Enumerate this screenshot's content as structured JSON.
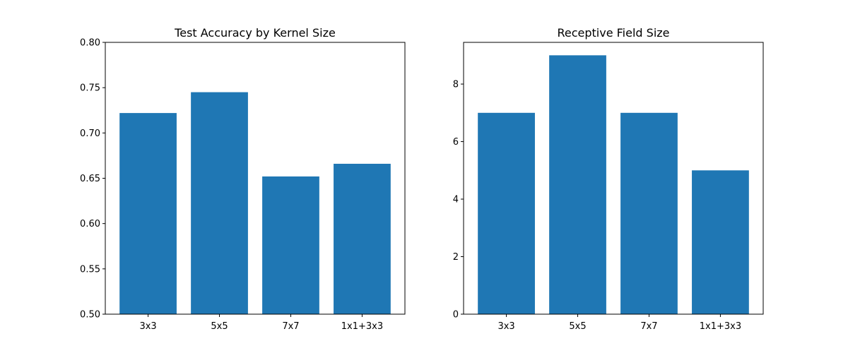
{
  "chart_data": [
    {
      "type": "bar",
      "title": "Test Accuracy by Kernel Size",
      "categories": [
        "3x3",
        "5x5",
        "7x7",
        "1x1+3x3"
      ],
      "values": [
        0.722,
        0.745,
        0.652,
        0.666
      ],
      "ylim": [
        0.5,
        0.8
      ],
      "yticks": [
        0.5,
        0.55,
        0.6,
        0.65,
        0.7,
        0.75,
        0.8
      ],
      "ytick_labels": [
        "0.50",
        "0.55",
        "0.60",
        "0.65",
        "0.70",
        "0.75",
        "0.80"
      ],
      "xlabel": "",
      "ylabel": "",
      "bar_color": "#1f77b4",
      "grid": false
    },
    {
      "type": "bar",
      "title": "Receptive Field Size",
      "categories": [
        "3x3",
        "5x5",
        "7x7",
        "1x1+3x3"
      ],
      "values": [
        7,
        9,
        7,
        5
      ],
      "ylim": [
        0,
        9.45
      ],
      "yticks": [
        0,
        2,
        4,
        6,
        8
      ],
      "ytick_labels": [
        "0",
        "2",
        "4",
        "6",
        "8"
      ],
      "xlabel": "",
      "ylabel": "",
      "bar_color": "#1f77b4",
      "grid": false
    }
  ]
}
